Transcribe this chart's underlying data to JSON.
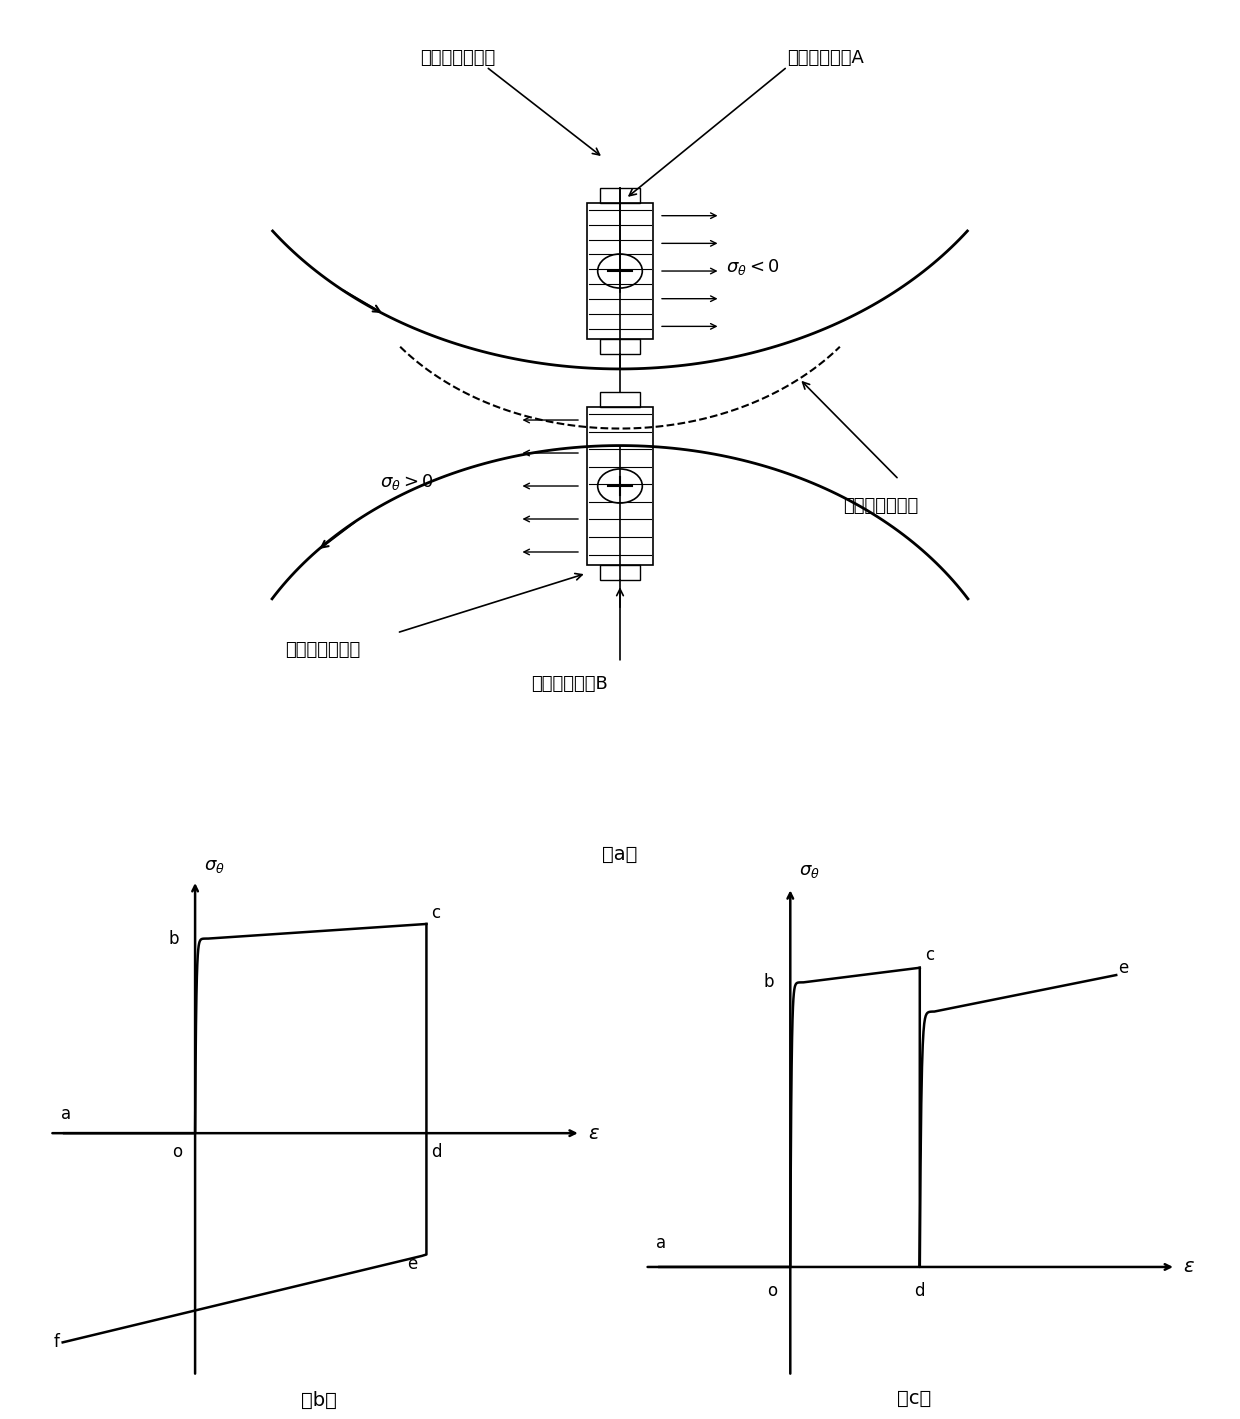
{
  "fig_width": 12.4,
  "fig_height": 14.19,
  "bg_color": "#ffffff",
  "label_a": "（a）",
  "label_b": "（b）",
  "label_c": "（c）",
  "text_inner_surface": "板料弯曲内表面",
  "text_inner_element": "内表面微元体A",
  "text_outer_surface": "板料弯曲外表面",
  "text_outer_element": "外表面微元体B",
  "text_neutral": "弯曲板料中性面",
  "line_color": "#000000",
  "font_size_label": 13,
  "font_size_axis": 12,
  "font_size_caption": 13,
  "font_size_point": 12
}
